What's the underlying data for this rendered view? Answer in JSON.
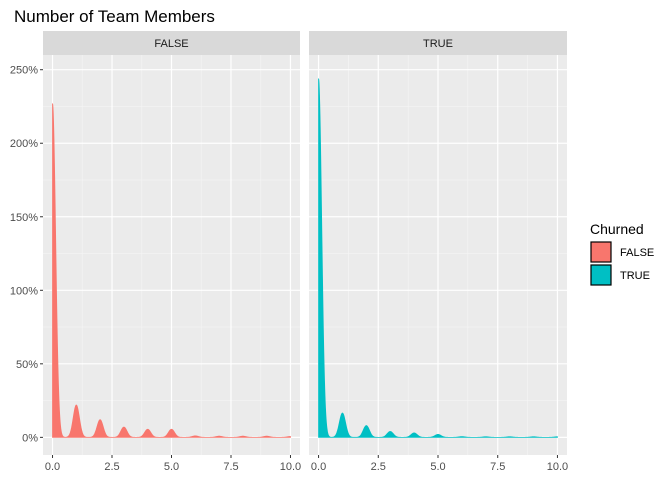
{
  "chart_data": {
    "type": "area",
    "title": "Number of Team Members",
    "xlim": [
      -0.4,
      10.4
    ],
    "ylim": [
      -0.12,
      2.6
    ],
    "x_ticks": [
      {
        "v": 0,
        "label": "0.0"
      },
      {
        "v": 2.5,
        "label": "2.5"
      },
      {
        "v": 5,
        "label": "5.0"
      },
      {
        "v": 7.5,
        "label": "7.5"
      },
      {
        "v": 10,
        "label": "10.0"
      }
    ],
    "y_ticks": [
      {
        "v": 0,
        "label": "0%"
      },
      {
        "v": 0.5,
        "label": "50%"
      },
      {
        "v": 1.0,
        "label": "100%"
      },
      {
        "v": 1.5,
        "label": "150%"
      },
      {
        "v": 2.0,
        "label": "200%"
      },
      {
        "v": 2.5,
        "label": "250%"
      }
    ],
    "grid": true,
    "legend": {
      "title": "Churned",
      "position": "right",
      "entries": [
        {
          "label": "FALSE",
          "color": "#F8766D"
        },
        {
          "label": "TRUE",
          "color": "#00BFC4"
        }
      ]
    },
    "facets": [
      {
        "label": "FALSE",
        "color": "#F8766D",
        "peaks": [
          {
            "x": 0,
            "y": 2.27
          },
          {
            "x": 1,
            "y": 0.22
          },
          {
            "x": 2,
            "y": 0.12
          },
          {
            "x": 3,
            "y": 0.07
          },
          {
            "x": 4,
            "y": 0.055
          },
          {
            "x": 5,
            "y": 0.055
          },
          {
            "x": 6,
            "y": 0.01
          },
          {
            "x": 7,
            "y": 0.008
          },
          {
            "x": 8,
            "y": 0.008
          },
          {
            "x": 9,
            "y": 0.008
          },
          {
            "x": 10,
            "y": 0.006
          }
        ]
      },
      {
        "label": "TRUE",
        "color": "#00BFC4",
        "peaks": [
          {
            "x": 0,
            "y": 2.44
          },
          {
            "x": 1,
            "y": 0.165
          },
          {
            "x": 2,
            "y": 0.08
          },
          {
            "x": 3,
            "y": 0.04
          },
          {
            "x": 4,
            "y": 0.03
          },
          {
            "x": 5,
            "y": 0.02
          },
          {
            "x": 6,
            "y": 0.005
          },
          {
            "x": 7,
            "y": 0.004
          },
          {
            "x": 8,
            "y": 0.004
          },
          {
            "x": 9,
            "y": 0.004
          },
          {
            "x": 10,
            "y": 0.004
          }
        ]
      }
    ]
  }
}
